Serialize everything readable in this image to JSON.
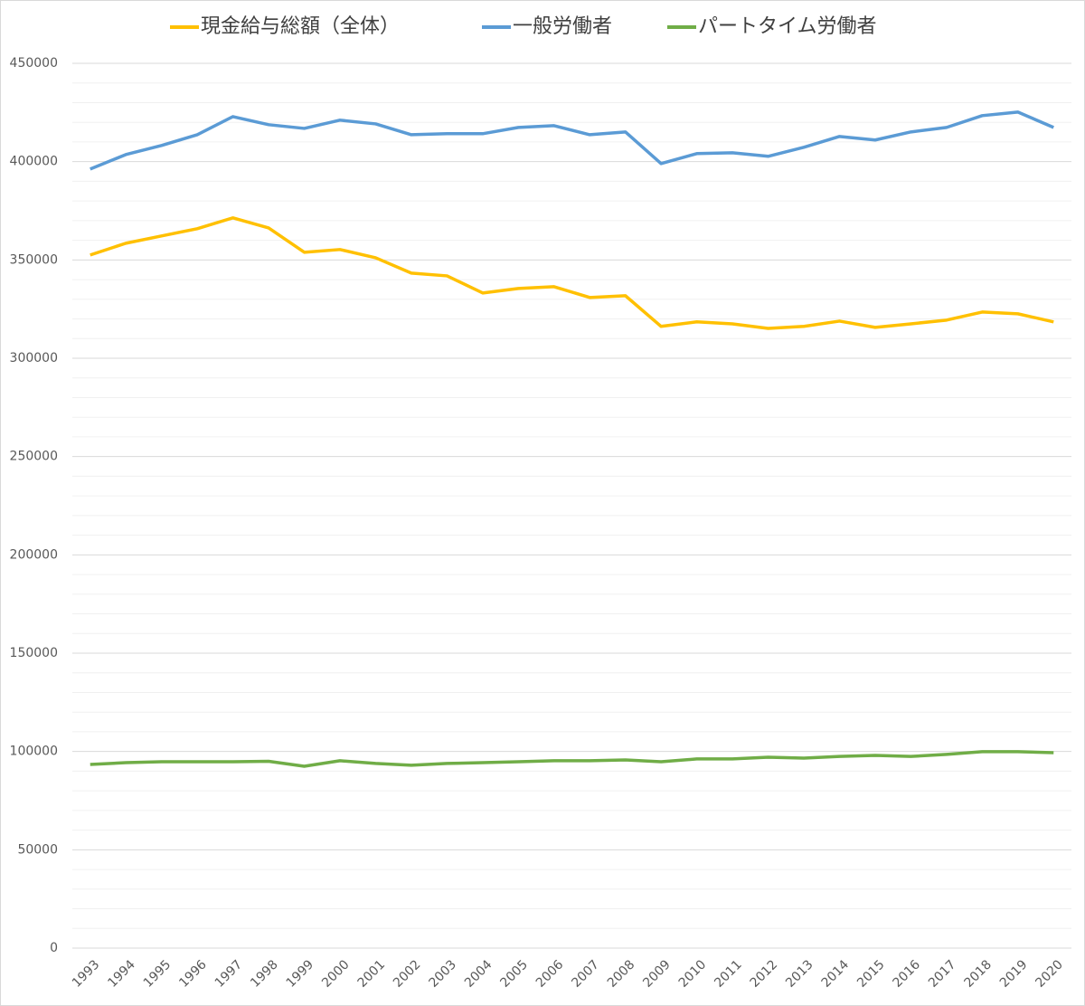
{
  "chart_data": {
    "type": "line",
    "categories": [
      "1993",
      "1994",
      "1995",
      "1996",
      "1997",
      "1998",
      "1999",
      "2000",
      "2001",
      "2002",
      "2003",
      "2004",
      "2005",
      "2006",
      "2007",
      "2008",
      "2009",
      "2010",
      "2011",
      "2012",
      "2013",
      "2014",
      "2015",
      "2016",
      "2017",
      "2018",
      "2019",
      "2020"
    ],
    "series": [
      {
        "name": "現金給与総額（全体）",
        "color": "#ffc000",
        "values": [
          352500,
          358500,
          362200,
          365900,
          371400,
          366300,
          353900,
          355300,
          351100,
          343300,
          341900,
          333200,
          335500,
          336400,
          330900,
          331800,
          316200,
          318500,
          317500,
          315200,
          316200,
          318900,
          315700,
          317500,
          319400,
          323500,
          322600,
          318500
        ]
      },
      {
        "name": "一般労働者",
        "color": "#5b9bd5",
        "values": [
          396200,
          403600,
          408200,
          413700,
          422900,
          418800,
          416900,
          421100,
          419200,
          413700,
          414200,
          414200,
          417400,
          418300,
          413700,
          415100,
          399000,
          404100,
          404500,
          402700,
          407300,
          412800,
          411000,
          415100,
          417400,
          423400,
          425200,
          417400
        ]
      },
      {
        "name": "パートタイム労働者",
        "color": "#70ad47",
        "values": [
          93400,
          94300,
          94800,
          94800,
          94800,
          95000,
          92500,
          95300,
          93900,
          93000,
          93900,
          94300,
          94800,
          95300,
          95300,
          95700,
          94800,
          96200,
          96200,
          97100,
          96600,
          97500,
          98000,
          97500,
          98500,
          99900,
          99900,
          99400
        ]
      }
    ],
    "ylim": [
      0,
      450000
    ],
    "yticks": [
      0,
      50000,
      100000,
      150000,
      200000,
      250000,
      300000,
      350000,
      400000,
      450000
    ],
    "minor_yticks": [
      10000,
      20000,
      30000,
      40000,
      60000,
      70000,
      80000,
      90000,
      110000,
      120000,
      130000,
      140000,
      160000,
      170000,
      180000,
      190000,
      210000,
      220000,
      230000,
      240000,
      260000,
      270000,
      280000,
      290000,
      310000,
      320000,
      330000,
      340000,
      360000,
      370000,
      380000,
      390000,
      410000,
      420000,
      430000,
      440000
    ],
    "grid": true,
    "legend": "top"
  }
}
